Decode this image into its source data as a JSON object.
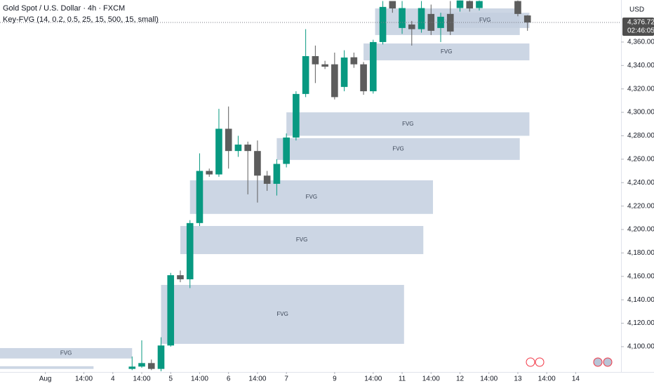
{
  "chart_data": {
    "type": "candlestick",
    "title": "Gold Spot / U.S. Dollar · 4h · FXCM",
    "subtitle": "Key-FVG (14, 0.2, 0.5, 25, 15, 500, 15, small)",
    "y_axis_label": "USD",
    "bull_color": "#089981",
    "bear_color": "#5d5d5d",
    "zone_color": "#c3cfdf",
    "xlim": [
      -13.7,
      50.7
    ],
    "ylim": [
      4078.4,
      4395.9
    ],
    "xticks": [
      {
        "value": -9,
        "label": "Aug"
      },
      {
        "value": -5,
        "label": "14:00"
      },
      {
        "value": -2,
        "label": "4"
      },
      {
        "value": 1,
        "label": "14:00"
      },
      {
        "value": 4,
        "label": "5"
      },
      {
        "value": 7,
        "label": "14:00"
      },
      {
        "value": 10,
        "label": "6"
      },
      {
        "value": 13,
        "label": "14:00"
      },
      {
        "value": 16,
        "label": "7"
      },
      {
        "value": 21,
        "label": "9"
      },
      {
        "value": 25,
        "label": "14:00"
      },
      {
        "value": 28,
        "label": "11"
      },
      {
        "value": 31,
        "label": "14:00"
      },
      {
        "value": 34,
        "label": "12"
      },
      {
        "value": 37,
        "label": "14:00"
      },
      {
        "value": 40,
        "label": "13"
      },
      {
        "value": 43,
        "label": "14:00"
      },
      {
        "value": 46,
        "label": "14"
      }
    ],
    "yticks": [
      {
        "value": 4100,
        "label": "4,100.00"
      },
      {
        "value": 4120,
        "label": "4,120.00"
      },
      {
        "value": 4140,
        "label": "4,140.00"
      },
      {
        "value": 4160,
        "label": "4,160.00"
      },
      {
        "value": 4180,
        "label": "4,180.00"
      },
      {
        "value": 4200,
        "label": "4,200.00"
      },
      {
        "value": 4220,
        "label": "4,220.00"
      },
      {
        "value": 4240,
        "label": "4,240.00"
      },
      {
        "value": 4260,
        "label": "4,260.00"
      },
      {
        "value": 4280,
        "label": "4,280.00"
      },
      {
        "value": 4300,
        "label": "4,300.00"
      },
      {
        "value": 4320,
        "label": "4,320.00"
      },
      {
        "value": 4340,
        "label": "4,340.00"
      },
      {
        "value": 4360,
        "label": "4,360.00"
      }
    ],
    "candles": {
      "x": [
        0,
        1,
        2,
        3,
        4,
        5,
        6,
        7,
        8,
        9,
        10,
        11,
        12,
        13,
        14,
        15,
        16,
        17,
        18,
        19,
        20,
        21,
        22,
        23,
        24,
        25,
        26,
        27,
        28,
        29,
        30,
        31,
        32,
        33,
        34,
        35,
        36,
        40,
        41
      ],
      "open": [
        4081,
        4083,
        4086,
        4081,
        4101,
        4161,
        4157.5,
        4205.5,
        4250,
        4247,
        4286,
        4267,
        4272.5,
        4267,
        4246,
        4239,
        4256,
        4278.5,
        4315.7,
        4348,
        4341,
        4341,
        4321.7,
        4347,
        4341,
        4318,
        4360,
        4395,
        4372,
        4375,
        4371,
        4384,
        4372,
        4384,
        4389,
        4395,
        4389,
        4395,
        4382.7
      ],
      "high": [
        4091.6,
        4105.4,
        4089,
        4108,
        4163,
        4165,
        4208,
        4265,
        4252,
        4303,
        4305,
        4280,
        4275,
        4276,
        4250,
        4260,
        4282,
        4318,
        4371,
        4357,
        4344,
        4351,
        4353,
        4351,
        4343,
        4362,
        4395,
        4395,
        4395,
        4378,
        4395,
        4392,
        4385,
        4395,
        4395.5,
        4395.5,
        4395.5,
        4395.5,
        4383
      ],
      "low": [
        4080,
        4082,
        4080,
        4079,
        4100,
        4155,
        4150,
        4203,
        4245,
        4245,
        4252,
        4262,
        4230,
        4223,
        4233,
        4229,
        4253,
        4276,
        4313,
        4325,
        4337,
        4311,
        4318,
        4338,
        4315,
        4316,
        4358,
        4385,
        4367,
        4357,
        4368,
        4366,
        4360,
        4366,
        4386,
        4386,
        4387,
        4382,
        4369.6
      ],
      "close": [
        4083,
        4086,
        4081,
        4101,
        4161,
        4157.5,
        4205.5,
        4250,
        4247,
        4286,
        4267,
        4272.5,
        4267,
        4246,
        4239,
        4256,
        4278.5,
        4315.7,
        4348,
        4341,
        4339,
        4313,
        4346.8,
        4341,
        4318,
        4360,
        4390,
        4388.7,
        4389,
        4371,
        4389,
        4369.6,
        4381.6,
        4369,
        4395.5,
        4388.7,
        4395,
        4384,
        4376.72
      ]
    },
    "zones": [
      {
        "label": "FVG",
        "x": [
          -13.7,
          0
        ],
        "y": [
          4089.9,
          4098.8
        ]
      },
      {
        "x": [
          -13.7,
          -4
        ],
        "y": [
          4081,
          4083.3
        ]
      },
      {
        "label": "FVG",
        "x": [
          3,
          28.2
        ],
        "y": [
          4102.4,
          4152.7
        ]
      },
      {
        "label": "FVG",
        "x": [
          5,
          30.2
        ],
        "y": [
          4179,
          4203
        ]
      },
      {
        "label": "FVG",
        "x": [
          6,
          31.2
        ],
        "y": [
          4213.3,
          4242
        ]
      },
      {
        "label": "FVG",
        "x": [
          15,
          40.2
        ],
        "y": [
          4259.4,
          4278
        ]
      },
      {
        "label": "FVG",
        "x": [
          16,
          41.2
        ],
        "y": [
          4280,
          4300
        ]
      },
      {
        "label": "FVG",
        "x": [
          24,
          41.2
        ],
        "y": [
          4344.4,
          4358.8
        ]
      },
      {
        "label": "FVG",
        "x": [
          25.2,
          40.2
        ],
        "y": [
          4366,
          4388.7
        ]
      },
      {
        "label": "FVG",
        "x": [
          32,
          41.2
        ],
        "y": [
          4372,
          4385
        ]
      }
    ],
    "last_price": {
      "value": 4376.72,
      "label": "4,376.72"
    },
    "countdown": "02:46:05"
  }
}
